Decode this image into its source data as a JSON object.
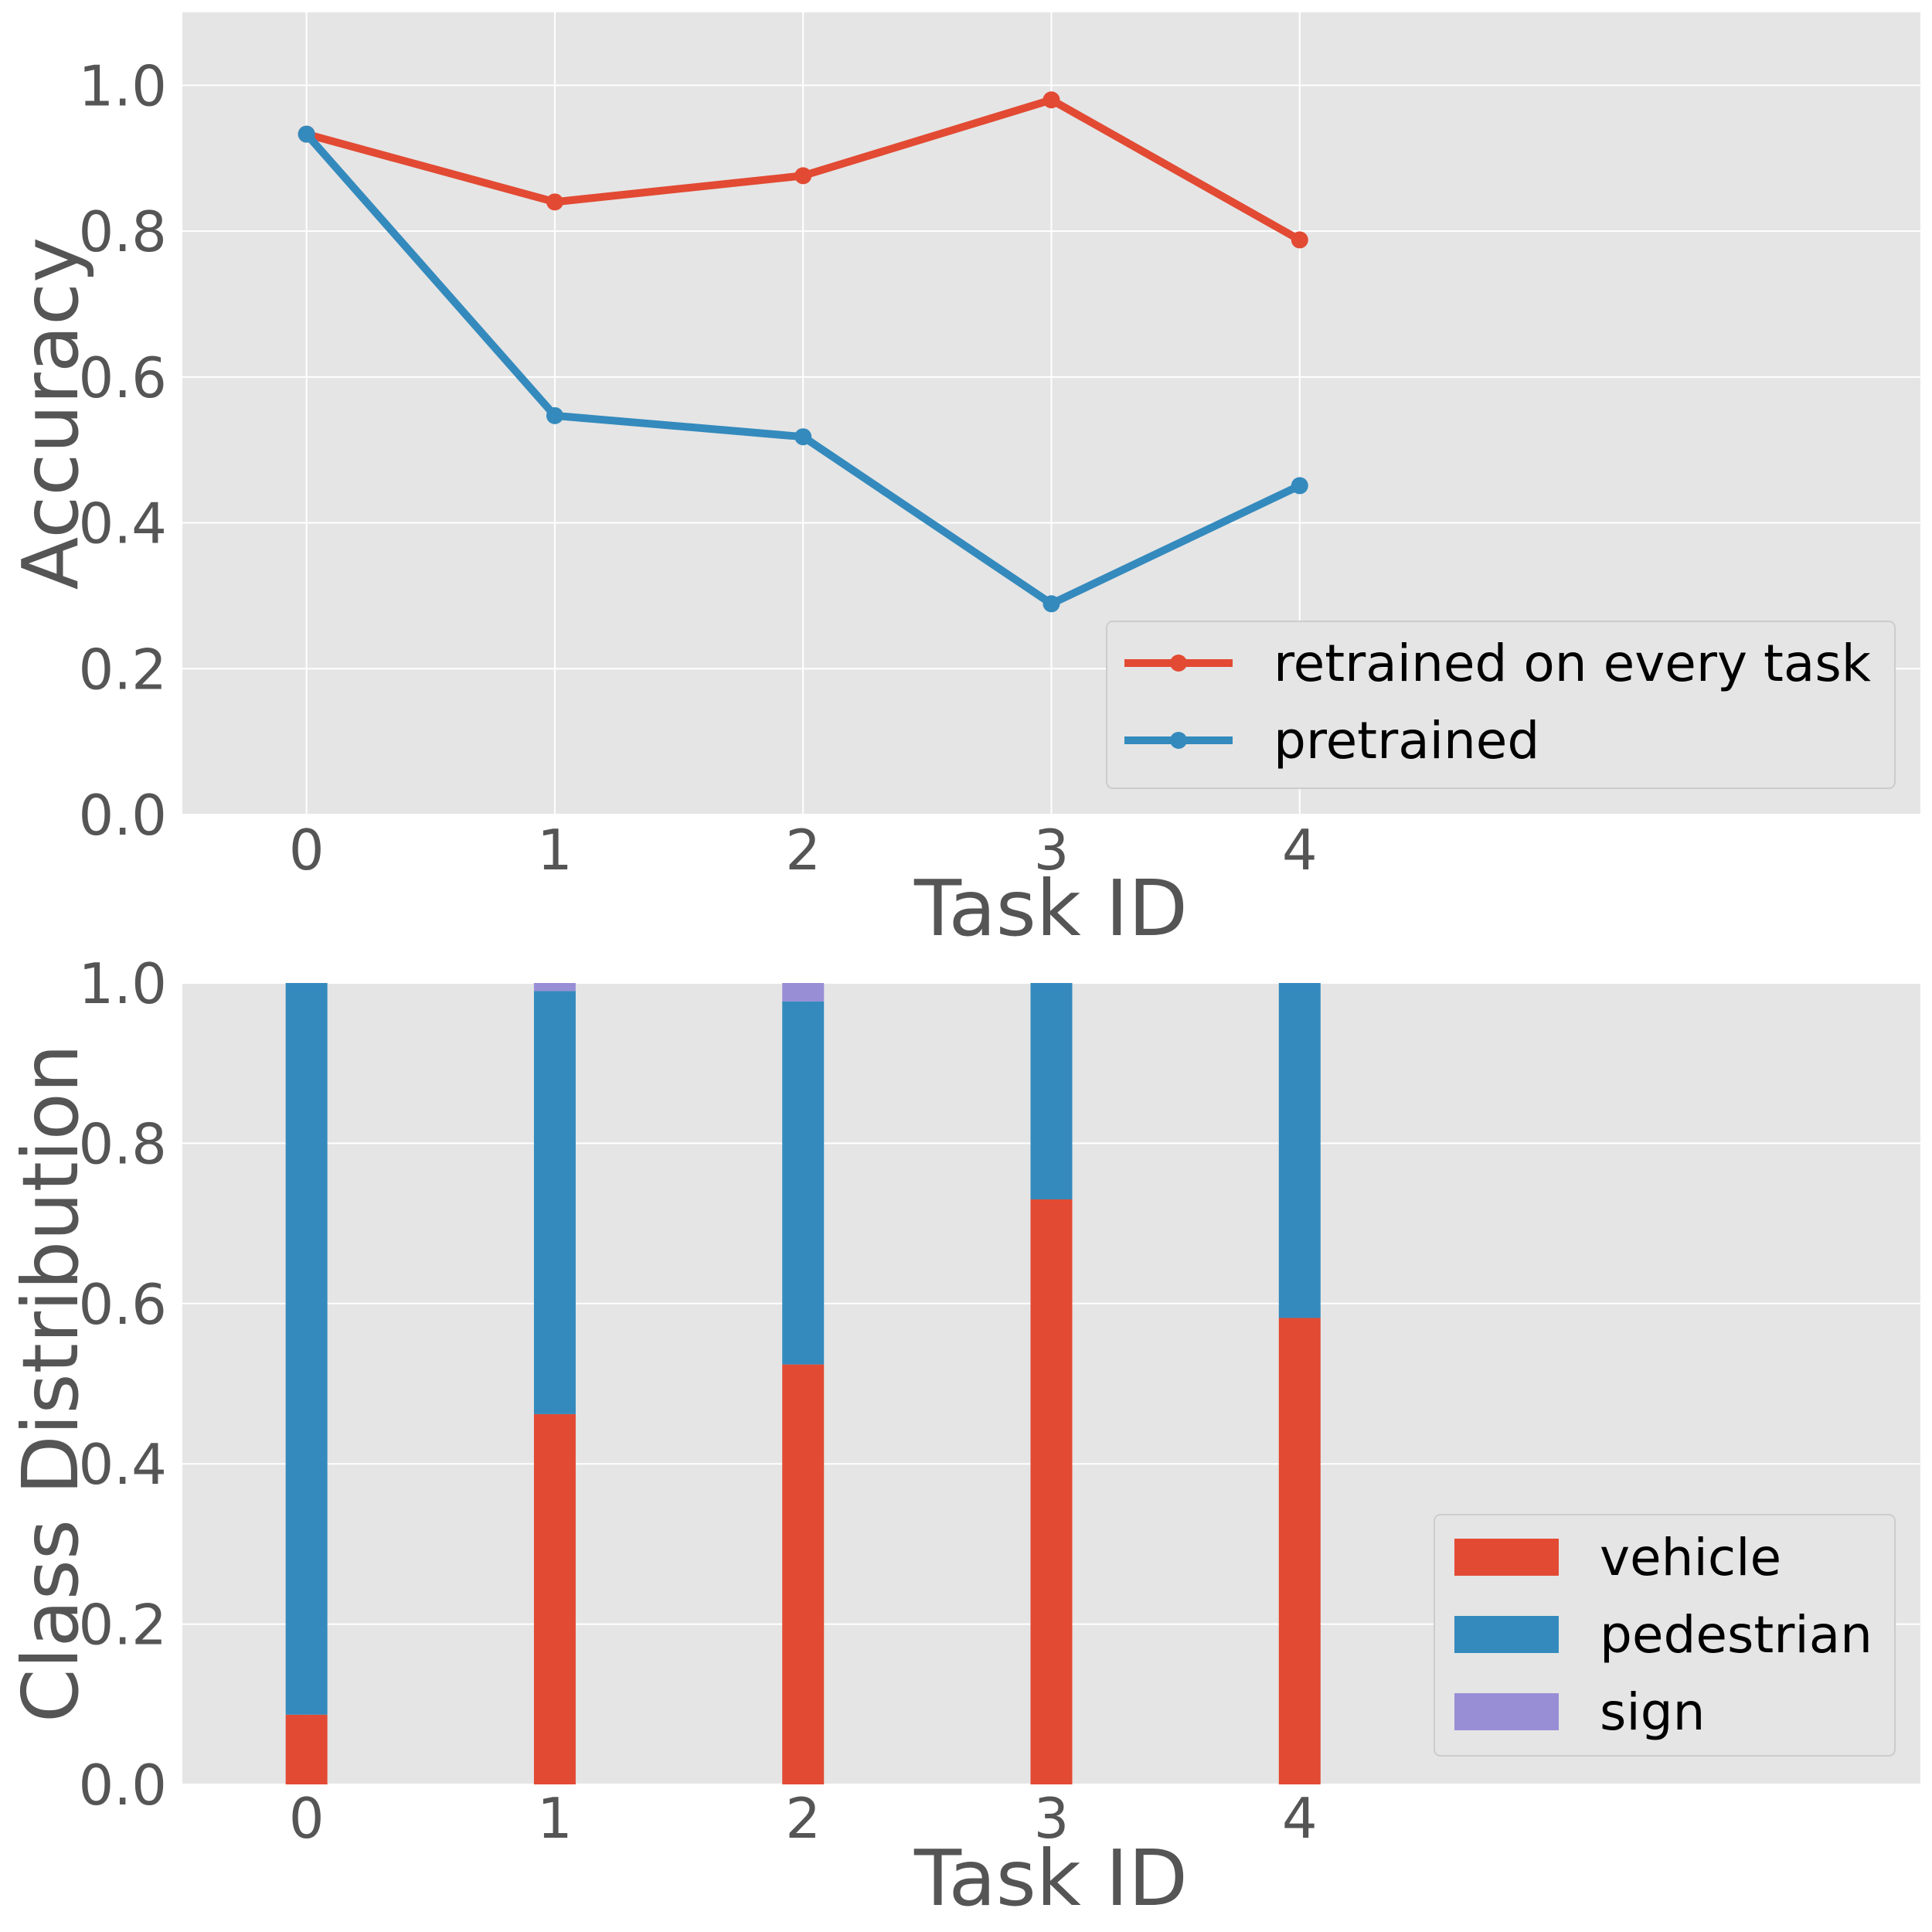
{
  "chart_data": [
    {
      "type": "line",
      "xlabel": "Task ID",
      "ylabel": "Accuracy",
      "x": [
        0,
        1,
        2,
        3,
        4
      ],
      "xlim": [
        -0.5,
        6.5
      ],
      "ylim": [
        0,
        1.1
      ],
      "xticks": [
        "0",
        "1",
        "2",
        "3",
        "4"
      ],
      "yticks": [
        "0.0",
        "0.2",
        "0.4",
        "0.6",
        "0.8",
        "1.0"
      ],
      "grid": true,
      "legend_position": "lower-right",
      "series": [
        {
          "name": "retrained on every task",
          "color": "#E24A33",
          "values": [
            0.933,
            0.84,
            0.876,
            0.98,
            0.788
          ]
        },
        {
          "name": "pretrained",
          "color": "#348ABD",
          "values": [
            0.933,
            0.547,
            0.518,
            0.289,
            0.451
          ]
        }
      ]
    },
    {
      "type": "bar",
      "stacked": true,
      "xlabel": "Task ID",
      "ylabel": "Class Distribution",
      "categories": [
        "0",
        "1",
        "2",
        "3",
        "4"
      ],
      "xlim": [
        -0.5,
        6.5
      ],
      "ylim": [
        0,
        1.0
      ],
      "yticks": [
        "0.0",
        "0.2",
        "0.4",
        "0.6",
        "0.8",
        "1.0"
      ],
      "grid": true,
      "legend_position": "lower-right",
      "series": [
        {
          "name": "vehicle",
          "color": "#E24A33",
          "values": [
            0.087,
            0.462,
            0.524,
            0.73,
            0.582
          ]
        },
        {
          "name": "pedestrian",
          "color": "#348ABD",
          "values": [
            0.913,
            0.528,
            0.453,
            0.27,
            0.418
          ]
        },
        {
          "name": "sign",
          "color": "#988ED5",
          "values": [
            0.0,
            0.01,
            0.023,
            0.0,
            0.0
          ]
        }
      ]
    }
  ]
}
